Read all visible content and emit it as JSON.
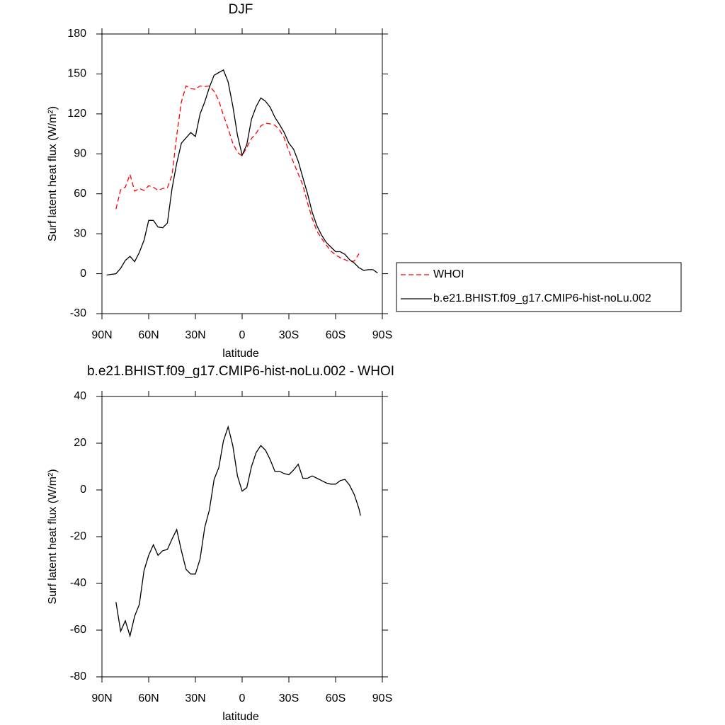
{
  "chart_data": [
    {
      "type": "line",
      "title": "DJF",
      "xlabel": "latitude",
      "ylabel": "Surf latent heat flux (W/m²)",
      "x": [
        87,
        84,
        81,
        78,
        75,
        72,
        69,
        66,
        63,
        60,
        57,
        54,
        51,
        48,
        45,
        42,
        39,
        36,
        33,
        30,
        27,
        24,
        21,
        18,
        15,
        12,
        9,
        6,
        3,
        0,
        -3,
        -6,
        -9,
        -12,
        -15,
        -18,
        -21,
        -24,
        -27,
        -30,
        -33,
        -36,
        -39,
        -42,
        -45,
        -48,
        -51,
        -54,
        -57,
        -60,
        -63,
        -66,
        -69,
        -72,
        -75,
        -78,
        -81,
        -84,
        -87
      ],
      "series": [
        {
          "name": "WHOI",
          "color": "#ff0000",
          "linestyle": "dashed",
          "values": [
            null,
            null,
            48.5,
            63,
            65,
            74.5,
            62,
            64,
            62.5,
            66,
            65,
            62.5,
            64,
            64.5,
            74,
            104,
            129,
            141,
            139,
            138.5,
            141,
            140.5,
            141,
            137,
            130,
            119,
            109,
            98,
            91,
            88.5,
            95,
            101.5,
            105.5,
            111,
            113,
            112.5,
            111.5,
            108,
            102,
            92,
            83.5,
            75,
            66.5,
            53,
            41.5,
            32,
            26.5,
            21.5,
            17,
            14,
            12,
            10.5,
            9,
            9.5,
            15,
            null,
            null,
            null,
            null
          ]
        },
        {
          "name": "b.e21.BHIST.f09_g17.CMIP6-hist-noLu.002",
          "color": "#000000",
          "linestyle": "solid",
          "values": [
            -1,
            -0.5,
            0,
            4,
            10,
            13,
            9,
            16,
            25,
            40,
            40,
            35,
            34.5,
            38,
            64,
            83,
            98,
            102,
            106,
            103,
            120,
            129,
            140,
            149,
            151,
            153,
            144,
            126,
            104,
            89,
            97,
            116,
            125.5,
            132,
            129.5,
            125,
            117.5,
            112,
            106,
            98,
            93.5,
            84.5,
            72,
            60,
            46,
            36,
            29,
            23.5,
            20,
            16.5,
            16.5,
            14.5,
            10.5,
            8,
            4.5,
            2.5,
            3,
            3,
            0.5
          ]
        }
      ],
      "xlim": [
        90,
        -90
      ],
      "xticks": [
        {
          "value": 90,
          "label": "90N"
        },
        {
          "value": 60,
          "label": "60N"
        },
        {
          "value": 30,
          "label": "30N"
        },
        0,
        {
          "value": -30,
          "label": "30S"
        },
        {
          "value": -60,
          "label": "60S"
        },
        {
          "value": -90,
          "label": "90S"
        }
      ],
      "ylim": [
        -30,
        180
      ],
      "yticks": [
        -30,
        0,
        30,
        60,
        90,
        120,
        150,
        180
      ],
      "legend": "right"
    },
    {
      "type": "line",
      "title": "b.e21.BHIST.f09_g17.CMIP6-hist-noLu.002 - WHOI",
      "xlabel": "latitude",
      "ylabel": "Surf latent heat flux (W/m²)",
      "x": [
        81,
        78,
        75,
        72,
        69,
        66,
        63,
        60,
        57,
        54,
        51,
        48,
        45,
        42,
        39,
        36,
        33,
        30,
        27,
        24,
        21,
        18,
        15,
        12,
        9,
        6,
        3,
        0,
        -3,
        -6,
        -9,
        -12,
        -15,
        -18,
        -21,
        -24,
        -27,
        -30,
        -33,
        -36,
        -39,
        -42,
        -45,
        -48,
        -51,
        -54,
        -57,
        -60,
        -63,
        -66,
        -69,
        -72,
        -75,
        -76
      ],
      "series": [
        {
          "color": "#000000",
          "linestyle": "solid",
          "values": [
            -48,
            -60.5,
            -56,
            -62.5,
            -54,
            -49,
            -34.5,
            -28,
            -23.5,
            -28,
            -26,
            -25.5,
            -21,
            -17,
            -26,
            -34,
            -36,
            -36,
            -29.5,
            -16,
            -8.5,
            4.5,
            9.5,
            21,
            27,
            19,
            6,
            -0.5,
            1,
            10,
            16,
            19,
            17,
            13,
            8,
            8,
            7,
            6.5,
            8.5,
            11,
            5,
            5,
            6,
            5,
            4,
            3,
            2.5,
            2.5,
            4,
            4.5,
            2,
            -2,
            -8,
            -11
          ]
        }
      ],
      "xlim": [
        90,
        -90
      ],
      "xticks": [
        {
          "value": 90,
          "label": "90N"
        },
        {
          "value": 60,
          "label": "60N"
        },
        {
          "value": 30,
          "label": "30N"
        },
        0,
        {
          "value": -30,
          "label": "30S"
        },
        {
          "value": -60,
          "label": "60S"
        },
        {
          "value": -90,
          "label": "90S"
        }
      ],
      "ylim": [
        -80,
        40
      ],
      "yticks": [
        -80,
        -60,
        -40,
        -20,
        0,
        20,
        40
      ]
    }
  ]
}
